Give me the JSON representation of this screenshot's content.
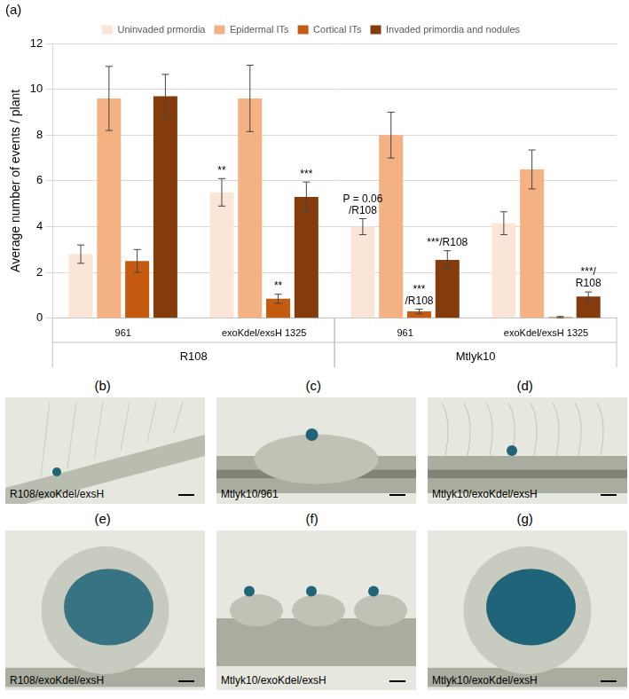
{
  "panel_label": "(a)",
  "chart_data": {
    "type": "bar",
    "y_label": "Average number of events / plant",
    "categories": [
      "961",
      "exoKdel/exsH 1325",
      "961",
      "exoKdel/exsH 1325"
    ],
    "groups": [
      "R108",
      "R108",
      "Mtlyk10",
      "Mtlyk10"
    ],
    "ylim": [
      0,
      12
    ],
    "yticks": [
      0,
      2,
      4,
      6,
      8,
      10,
      12
    ],
    "grid": true,
    "legend": "top",
    "series": [
      {
        "name": "Uninvaded prmordia",
        "color": "#fbe5d6",
        "values": [
          2.8,
          5.5,
          4.0,
          4.15
        ],
        "errors": [
          0.4,
          0.6,
          0.35,
          0.5
        ]
      },
      {
        "name": "Epidermal ITs",
        "color": "#f4b183",
        "values": [
          9.6,
          9.6,
          8.0,
          6.5
        ],
        "errors": [
          1.4,
          1.45,
          1.0,
          0.85
        ]
      },
      {
        "name": "Cortical ITs",
        "color": "#c55a11",
        "values": [
          2.5,
          0.85,
          0.3,
          0.05
        ],
        "errors": [
          0.5,
          0.2,
          0.1,
          0.03
        ]
      },
      {
        "name": "Invaded primordia and nodules",
        "color": "#843c0c",
        "values": [
          9.7,
          5.3,
          2.55,
          0.95
        ],
        "errors": [
          0.95,
          0.65,
          0.4,
          0.2
        ]
      }
    ],
    "annotations": [
      {
        "category": 1,
        "series": "Uninvaded prmordia",
        "text": [
          "**"
        ]
      },
      {
        "category": 1,
        "series": "Cortical ITs",
        "text": [
          "**"
        ]
      },
      {
        "category": 1,
        "series": "Invaded primordia and nodules",
        "text": [
          "***"
        ]
      },
      {
        "category": 2,
        "series": "Uninvaded prmordia",
        "text": [
          "P = 0.06",
          "/R108"
        ]
      },
      {
        "category": 2,
        "series": "Cortical ITs",
        "text": [
          "***",
          "/R108"
        ]
      },
      {
        "category": 2,
        "series": "Invaded primordia and nodules",
        "text": [
          "***/R108"
        ]
      },
      {
        "category": 3,
        "series": "Invaded primordia and nodules",
        "text": [
          "***/",
          "R108"
        ]
      }
    ]
  },
  "panels": [
    {
      "letter": "(b)",
      "label": "R108/exoKdel/exsH"
    },
    {
      "letter": "(c)",
      "label": "Mtlyk10/961"
    },
    {
      "letter": "(d)",
      "label": "Mtlyk10/exoKdel/exsH"
    },
    {
      "letter": "(e)",
      "label": "R108/exoKdel/exsH"
    },
    {
      "letter": "(f)",
      "label": "Mtlyk10/exoKdel/exsH"
    },
    {
      "letter": "(g)",
      "label": "Mtlyk10/exoKdel/exsH"
    }
  ]
}
